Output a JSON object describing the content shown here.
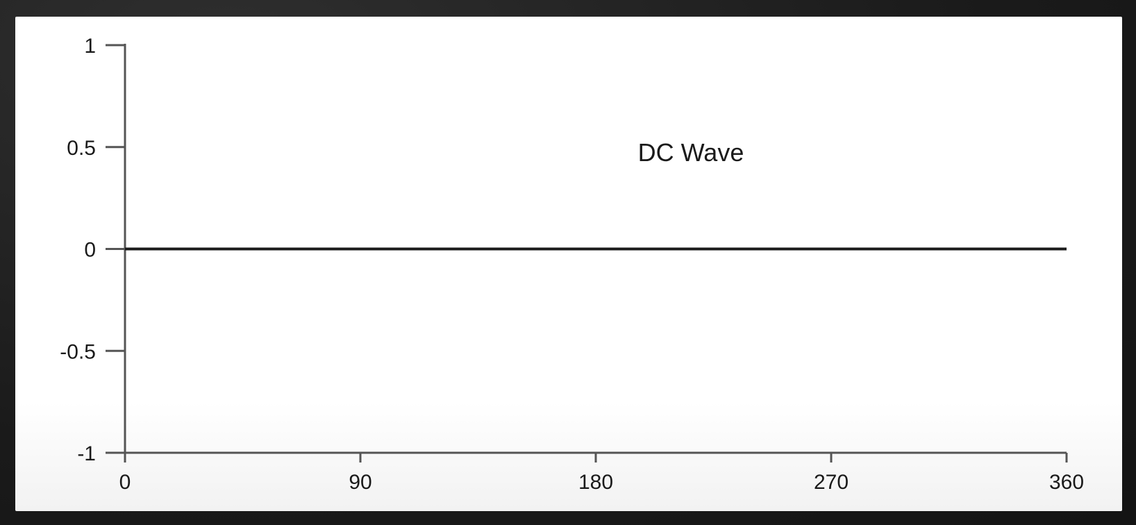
{
  "chart_data": {
    "type": "line",
    "title": "DC Wave",
    "xlabel": "",
    "ylabel": "",
    "x_ticks": [
      "0",
      "90",
      "180",
      "270",
      "360"
    ],
    "y_ticks": [
      "1",
      "0.5",
      "0",
      "-0.5",
      "-1"
    ],
    "xlim": [
      0,
      360
    ],
    "ylim": [
      -1,
      1
    ],
    "grid": false,
    "series": [
      {
        "x": [
          0,
          360
        ],
        "y": [
          0,
          0
        ]
      }
    ]
  },
  "colors": {
    "line": "#1a1a1a",
    "axis": "#555555",
    "background": "#ffffff",
    "frame": "#1c1c1c"
  }
}
